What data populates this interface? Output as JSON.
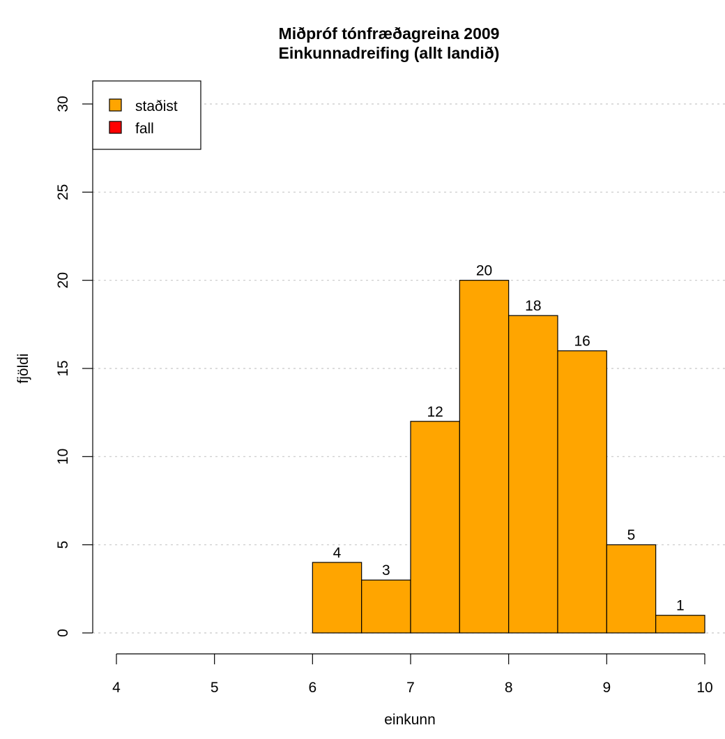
{
  "chart_data": {
    "type": "bar",
    "title": [
      "Miðpróf tónfræðagreina 2009",
      "Einkunnadreifing (allt landið)"
    ],
    "xlabel": "einkunn",
    "ylabel": "fjöldi",
    "xlim": [
      4,
      10
    ],
    "ylim": [
      0,
      30
    ],
    "x_ticks": [
      4,
      5,
      6,
      7,
      8,
      9,
      10
    ],
    "y_ticks": [
      0,
      5,
      10,
      15,
      20,
      25,
      30
    ],
    "grid": "horizontal dotted",
    "legend_position": "top-left",
    "bin_width": 0.5,
    "bins": [
      {
        "start": 6.0,
        "end": 6.5,
        "value": 4
      },
      {
        "start": 6.5,
        "end": 7.0,
        "value": 3
      },
      {
        "start": 7.0,
        "end": 7.5,
        "value": 12
      },
      {
        "start": 7.5,
        "end": 8.0,
        "value": 20
      },
      {
        "start": 8.0,
        "end": 8.5,
        "value": 18
      },
      {
        "start": 8.5,
        "end": 9.0,
        "value": 16
      },
      {
        "start": 9.0,
        "end": 9.5,
        "value": 5
      },
      {
        "start": 9.5,
        "end": 10.0,
        "value": 1
      }
    ],
    "series": [
      {
        "name": "staðist",
        "color": "#FFA500",
        "values": [
          4,
          3,
          12,
          20,
          18,
          16,
          5,
          1
        ]
      },
      {
        "name": "fall",
        "color": "#FF0000",
        "values": [
          0,
          0,
          0,
          0,
          0,
          0,
          0,
          0
        ]
      }
    ]
  }
}
